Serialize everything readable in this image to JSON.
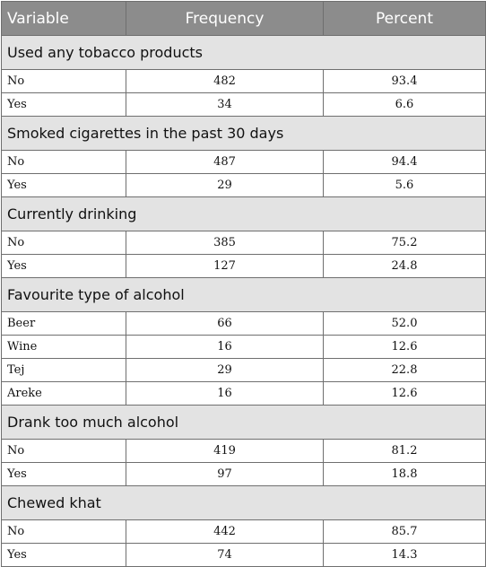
{
  "table": {
    "headers": [
      "Variable",
      "Frequency",
      "Percent"
    ],
    "sections": [
      {
        "title": "Used any tobacco products",
        "rows": [
          {
            "label": "No",
            "frequency": "482",
            "percent": "93.4"
          },
          {
            "label": "Yes",
            "frequency": "34",
            "percent": "6.6"
          }
        ]
      },
      {
        "title": "Smoked cigarettes in the past 30 days",
        "rows": [
          {
            "label": "No",
            "frequency": "487",
            "percent": "94.4"
          },
          {
            "label": "Yes",
            "frequency": "29",
            "percent": "5.6"
          }
        ]
      },
      {
        "title": "Currently drinking",
        "rows": [
          {
            "label": "No",
            "frequency": "385",
            "percent": "75.2"
          },
          {
            "label": "Yes",
            "frequency": "127",
            "percent": "24.8"
          }
        ]
      },
      {
        "title": "Favourite type of alcohol",
        "rows": [
          {
            "label": "Beer",
            "frequency": "66",
            "percent": "52.0"
          },
          {
            "label": "Wine",
            "frequency": "16",
            "percent": "12.6"
          },
          {
            "label": "Tej",
            "frequency": "29",
            "percent": "22.8"
          },
          {
            "label": "Areke",
            "frequency": "16",
            "percent": "12.6"
          }
        ]
      },
      {
        "title": "Drank too much alcohol",
        "rows": [
          {
            "label": "No",
            "frequency": "419",
            "percent": "81.2"
          },
          {
            "label": "Yes",
            "frequency": "97",
            "percent": "18.8"
          }
        ]
      },
      {
        "title": "Chewed khat",
        "rows": [
          {
            "label": "No",
            "frequency": "442",
            "percent": "85.7"
          },
          {
            "label": "Yes",
            "frequency": "74",
            "percent": "14.3"
          }
        ]
      }
    ]
  }
}
